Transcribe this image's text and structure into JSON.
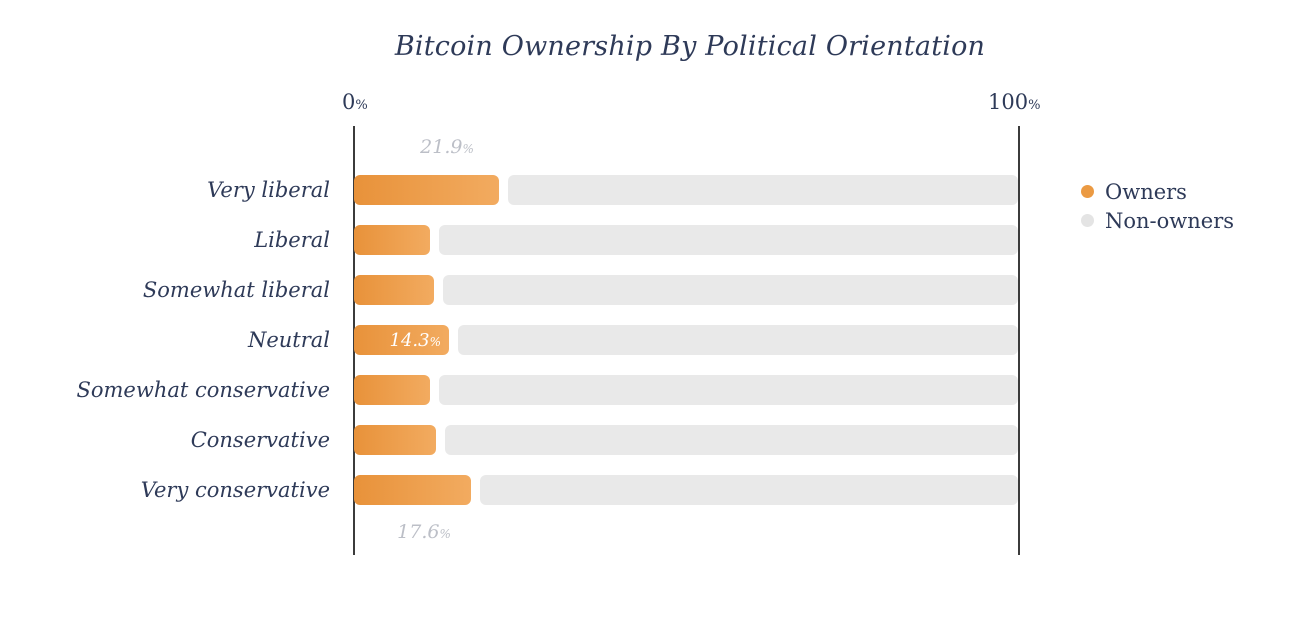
{
  "page": {
    "background": "#ffffff"
  },
  "chart_data": {
    "type": "bar",
    "orientation": "horizontal",
    "stacked": true,
    "title": "Bitcoin Ownership By Political Orientation",
    "x_axis": {
      "range": [
        0,
        100
      ],
      "min_tick": {
        "num": "0",
        "sign": "%"
      },
      "max_tick": {
        "num": "100",
        "sign": "%"
      },
      "grid": false
    },
    "categories": [
      "Very liberal",
      "Liberal",
      "Somewhat liberal",
      "Neutral",
      "Somewhat conservative",
      "Conservative",
      "Very conservative"
    ],
    "series": [
      {
        "name": "Owners",
        "color": "#eb9a43",
        "values": [
          21.9,
          11.5,
          12.0,
          14.3,
          11.4,
          12.3,
          17.6
        ]
      },
      {
        "name": "Non-owners",
        "color": "#e9e9e9",
        "values": [
          78.1,
          88.5,
          88.0,
          85.7,
          88.6,
          87.7,
          82.4
        ]
      }
    ],
    "value_labels": [
      {
        "row_index": 0,
        "num": "21.9",
        "sign": "%",
        "placement": "above-bar",
        "color": "#bcbfc7"
      },
      {
        "row_index": 3,
        "num": "14.3",
        "sign": "%",
        "placement": "inside-bar-right",
        "color": "#ffffff"
      },
      {
        "row_index": 6,
        "num": "17.6",
        "sign": "%",
        "placement": "below-bar",
        "color": "#bcbfc7"
      }
    ],
    "legend": {
      "position": "right"
    }
  },
  "colors": {
    "text_navy": "#2e3a58",
    "axis_line": "#3b3b3b",
    "owner_bar_gradient_start": "#e8923a",
    "owner_bar_gradient_end": "#f2ab60",
    "nonowner_bar": "#e9e9e9",
    "muted_value_label": "#bcbfc7"
  }
}
